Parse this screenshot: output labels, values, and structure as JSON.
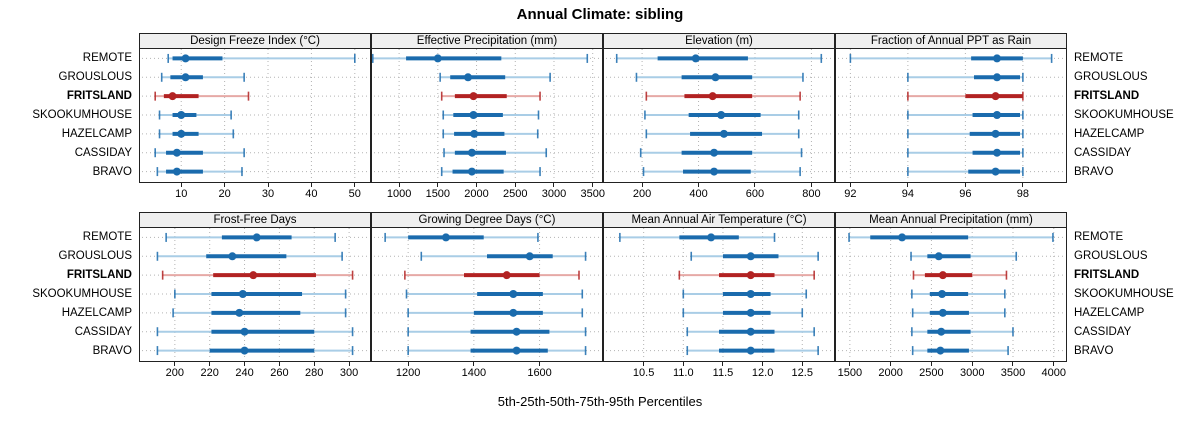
{
  "title": "Annual Climate: sibling",
  "xlabel": "5th-25th-50th-75th-95th Percentiles",
  "sites": [
    "REMOTE",
    "GROUSLOUS",
    "FRITSLAND",
    "SKOOKUMHOUSE",
    "HAZELCAMP",
    "CASSIDAY",
    "BRAVO"
  ],
  "highlight_site": "FRITSLAND",
  "colors": {
    "blue_solid": "#1a6bad",
    "blue_light": "#a9cde6",
    "red_solid": "#b22222",
    "red_light": "#e6a9a6",
    "gridline": "#b3b3b3",
    "strip_bg": "#efefef",
    "border": "#222222"
  },
  "chart_data": [
    {
      "type": "scatter",
      "variant": "percentile-interval-dotplot",
      "row": 0,
      "title": "Design Freeze Index (°C)",
      "percentiles": [
        5,
        25,
        50,
        75,
        95
      ],
      "xlim": [
        0.5,
        53.5
      ],
      "tick_values": [
        10,
        20,
        30,
        40,
        50
      ],
      "ticks": [
        "10",
        "20",
        "30",
        "40",
        "50"
      ],
      "series": [
        {
          "site": "REMOTE",
          "values": [
            7,
            8,
            11,
            19.5,
            50
          ]
        },
        {
          "site": "GROUSLOUS",
          "values": [
            5.5,
            7.5,
            11,
            15,
            24.5
          ]
        },
        {
          "site": "FRITSLAND",
          "values": [
            4,
            6,
            8,
            14,
            25.5
          ]
        },
        {
          "site": "SKOOKUMHOUSE",
          "values": [
            5,
            8,
            10,
            13.5,
            21.5
          ]
        },
        {
          "site": "HAZELCAMP",
          "values": [
            5,
            8,
            10,
            14,
            22
          ]
        },
        {
          "site": "CASSIDAY",
          "values": [
            4,
            6.5,
            9,
            15,
            24.5
          ]
        },
        {
          "site": "BRAVO",
          "values": [
            4.5,
            6.5,
            9,
            15,
            24
          ]
        }
      ]
    },
    {
      "type": "scatter",
      "variant": "percentile-interval-dotplot",
      "row": 0,
      "title": "Effective Precipitation (mm)",
      "percentiles": [
        5,
        25,
        50,
        75,
        95
      ],
      "xlim": [
        650,
        3620
      ],
      "tick_values": [
        1000,
        1500,
        2000,
        2500,
        3000,
        3500
      ],
      "ticks": [
        "1000",
        "1500",
        "2000",
        "2500",
        "3000",
        "3500"
      ],
      "series": [
        {
          "site": "REMOTE",
          "values": [
            660,
            1090,
            1500,
            2320,
            3430
          ]
        },
        {
          "site": "GROUSLOUS",
          "values": [
            1530,
            1660,
            1890,
            2370,
            2950
          ]
        },
        {
          "site": "FRITSLAND",
          "values": [
            1550,
            1720,
            1960,
            2390,
            2820
          ]
        },
        {
          "site": "SKOOKUMHOUSE",
          "values": [
            1570,
            1700,
            1960,
            2340,
            2800
          ]
        },
        {
          "site": "HAZELCAMP",
          "values": [
            1570,
            1710,
            1970,
            2360,
            2790
          ]
        },
        {
          "site": "CASSIDAY",
          "values": [
            1580,
            1720,
            1940,
            2380,
            2900
          ]
        },
        {
          "site": "BRAVO",
          "values": [
            1550,
            1690,
            1940,
            2350,
            2820
          ]
        }
      ]
    },
    {
      "type": "scatter",
      "variant": "percentile-interval-dotplot",
      "row": 0,
      "title": "Elevation (m)",
      "percentiles": [
        5,
        25,
        50,
        75,
        95
      ],
      "xlim": [
        65,
        880
      ],
      "tick_values": [
        200,
        400,
        600,
        800
      ],
      "ticks": [
        "200",
        "400",
        "600",
        "800"
      ],
      "series": [
        {
          "site": "REMOTE",
          "values": [
            110,
            255,
            390,
            575,
            835
          ]
        },
        {
          "site": "GROUSLOUS",
          "values": [
            180,
            340,
            460,
            590,
            770
          ]
        },
        {
          "site": "FRITSLAND",
          "values": [
            215,
            350,
            450,
            590,
            760
          ]
        },
        {
          "site": "SKOOKUMHOUSE",
          "values": [
            210,
            365,
            480,
            620,
            755
          ]
        },
        {
          "site": "HAZELCAMP",
          "values": [
            215,
            370,
            490,
            625,
            755
          ]
        },
        {
          "site": "CASSIDAY",
          "values": [
            195,
            340,
            455,
            590,
            765
          ]
        },
        {
          "site": "BRAVO",
          "values": [
            205,
            345,
            455,
            585,
            760
          ]
        }
      ]
    },
    {
      "type": "scatter",
      "variant": "percentile-interval-dotplot",
      "row": 0,
      "title": "Fraction of Annual PPT as Rain",
      "percentiles": [
        5,
        25,
        50,
        75,
        95
      ],
      "xlim": [
        91.5,
        99.5
      ],
      "tick_values": [
        92,
        94,
        96,
        98
      ],
      "ticks": [
        "92",
        "94",
        "96",
        "98"
      ],
      "series": [
        {
          "site": "REMOTE",
          "values": [
            92.0,
            96.2,
            97.1,
            98.0,
            99.0
          ]
        },
        {
          "site": "GROUSLOUS",
          "values": [
            94.0,
            96.3,
            97.1,
            97.9,
            98.0
          ]
        },
        {
          "site": "FRITSLAND",
          "values": [
            94.0,
            96.0,
            97.05,
            98.0,
            98.0
          ]
        },
        {
          "site": "SKOOKUMHOUSE",
          "values": [
            94.0,
            96.25,
            97.1,
            97.9,
            98.0
          ]
        },
        {
          "site": "HAZELCAMP",
          "values": [
            94.0,
            96.15,
            97.05,
            97.9,
            98.0
          ]
        },
        {
          "site": "CASSIDAY",
          "values": [
            94.0,
            96.25,
            97.1,
            97.9,
            98.0
          ]
        },
        {
          "site": "BRAVO",
          "values": [
            94.0,
            96.1,
            97.05,
            97.9,
            98.0
          ]
        }
      ]
    },
    {
      "type": "scatter",
      "variant": "percentile-interval-dotplot",
      "row": 1,
      "title": "Frost-Free Days",
      "percentiles": [
        5,
        25,
        50,
        75,
        95
      ],
      "xlim": [
        180,
        312
      ],
      "tick_values": [
        200,
        220,
        240,
        260,
        280,
        300
      ],
      "ticks": [
        "200",
        "220",
        "240",
        "260",
        "280",
        "300"
      ],
      "series": [
        {
          "site": "REMOTE",
          "values": [
            195,
            227,
            247,
            267,
            292
          ]
        },
        {
          "site": "GROUSLOUS",
          "values": [
            190,
            218,
            233,
            264,
            296
          ]
        },
        {
          "site": "FRITSLAND",
          "values": [
            193,
            222,
            245,
            281,
            302
          ]
        },
        {
          "site": "SKOOKUMHOUSE",
          "values": [
            200,
            221,
            239,
            273,
            298
          ]
        },
        {
          "site": "HAZELCAMP",
          "values": [
            199,
            221,
            237,
            272,
            298
          ]
        },
        {
          "site": "CASSIDAY",
          "values": [
            190,
            221,
            240,
            280,
            302
          ]
        },
        {
          "site": "BRAVO",
          "values": [
            190,
            220,
            240,
            280,
            302
          ]
        }
      ]
    },
    {
      "type": "scatter",
      "variant": "percentile-interval-dotplot",
      "row": 1,
      "title": "Growing Degree Days (°C)",
      "percentiles": [
        5,
        25,
        50,
        75,
        95
      ],
      "xlim": [
        1090,
        1790
      ],
      "tick_values": [
        1200,
        1400,
        1600
      ],
      "ticks": [
        "1200",
        "1400",
        "1600"
      ],
      "series": [
        {
          "site": "REMOTE",
          "values": [
            1130,
            1200,
            1315,
            1430,
            1595
          ]
        },
        {
          "site": "GROUSLOUS",
          "values": [
            1240,
            1440,
            1570,
            1640,
            1740
          ]
        },
        {
          "site": "FRITSLAND",
          "values": [
            1190,
            1370,
            1500,
            1600,
            1720
          ]
        },
        {
          "site": "SKOOKUMHOUSE",
          "values": [
            1195,
            1410,
            1520,
            1610,
            1730
          ]
        },
        {
          "site": "HAZELCAMP",
          "values": [
            1200,
            1400,
            1520,
            1610,
            1730
          ]
        },
        {
          "site": "CASSIDAY",
          "values": [
            1200,
            1390,
            1530,
            1630,
            1740
          ]
        },
        {
          "site": "BRAVO",
          "values": [
            1200,
            1390,
            1530,
            1625,
            1740
          ]
        }
      ]
    },
    {
      "type": "scatter",
      "variant": "percentile-interval-dotplot",
      "row": 1,
      "title": "Mean Annual Air Temperature (°C)",
      "percentiles": [
        5,
        25,
        50,
        75,
        95
      ],
      "xlim": [
        10.0,
        12.9
      ],
      "tick_values": [
        10.5,
        11.0,
        11.5,
        12.0,
        12.5
      ],
      "ticks": [
        "10.5",
        "11.0",
        "11.5",
        "12.0",
        "12.5"
      ],
      "series": [
        {
          "site": "REMOTE",
          "values": [
            10.2,
            10.95,
            11.35,
            11.7,
            12.15
          ]
        },
        {
          "site": "GROUSLOUS",
          "values": [
            11.1,
            11.5,
            11.85,
            12.2,
            12.7
          ]
        },
        {
          "site": "FRITSLAND",
          "values": [
            10.95,
            11.45,
            11.85,
            12.15,
            12.65
          ]
        },
        {
          "site": "SKOOKUMHOUSE",
          "values": [
            11.0,
            11.5,
            11.85,
            12.1,
            12.55
          ]
        },
        {
          "site": "HAZELCAMP",
          "values": [
            11.0,
            11.5,
            11.85,
            12.1,
            12.5
          ]
        },
        {
          "site": "CASSIDAY",
          "values": [
            11.05,
            11.45,
            11.85,
            12.15,
            12.65
          ]
        },
        {
          "site": "BRAVO",
          "values": [
            11.05,
            11.45,
            11.85,
            12.15,
            12.7
          ]
        }
      ]
    },
    {
      "type": "scatter",
      "variant": "percentile-interval-dotplot",
      "row": 1,
      "title": "Mean Annual Precipitation (mm)",
      "percentiles": [
        5,
        25,
        50,
        75,
        95
      ],
      "xlim": [
        1330,
        4150
      ],
      "tick_values": [
        1500,
        2000,
        2500,
        3000,
        3500,
        4000
      ],
      "ticks": [
        "1500",
        "2000",
        "2500",
        "3000",
        "3500",
        "4000"
      ],
      "series": [
        {
          "site": "REMOTE",
          "values": [
            1490,
            1750,
            2140,
            2950,
            3990
          ]
        },
        {
          "site": "GROUSLOUS",
          "values": [
            2250,
            2450,
            2590,
            2980,
            3540
          ]
        },
        {
          "site": "FRITSLAND",
          "values": [
            2280,
            2420,
            2640,
            3000,
            3420
          ]
        },
        {
          "site": "SKOOKUMHOUSE",
          "values": [
            2260,
            2480,
            2630,
            2950,
            3400
          ]
        },
        {
          "site": "HAZELCAMP",
          "values": [
            2270,
            2480,
            2640,
            2960,
            3400
          ]
        },
        {
          "site": "CASSIDAY",
          "values": [
            2260,
            2450,
            2620,
            2980,
            3500
          ]
        },
        {
          "site": "BRAVO",
          "values": [
            2270,
            2450,
            2610,
            2960,
            3440
          ]
        }
      ]
    }
  ]
}
